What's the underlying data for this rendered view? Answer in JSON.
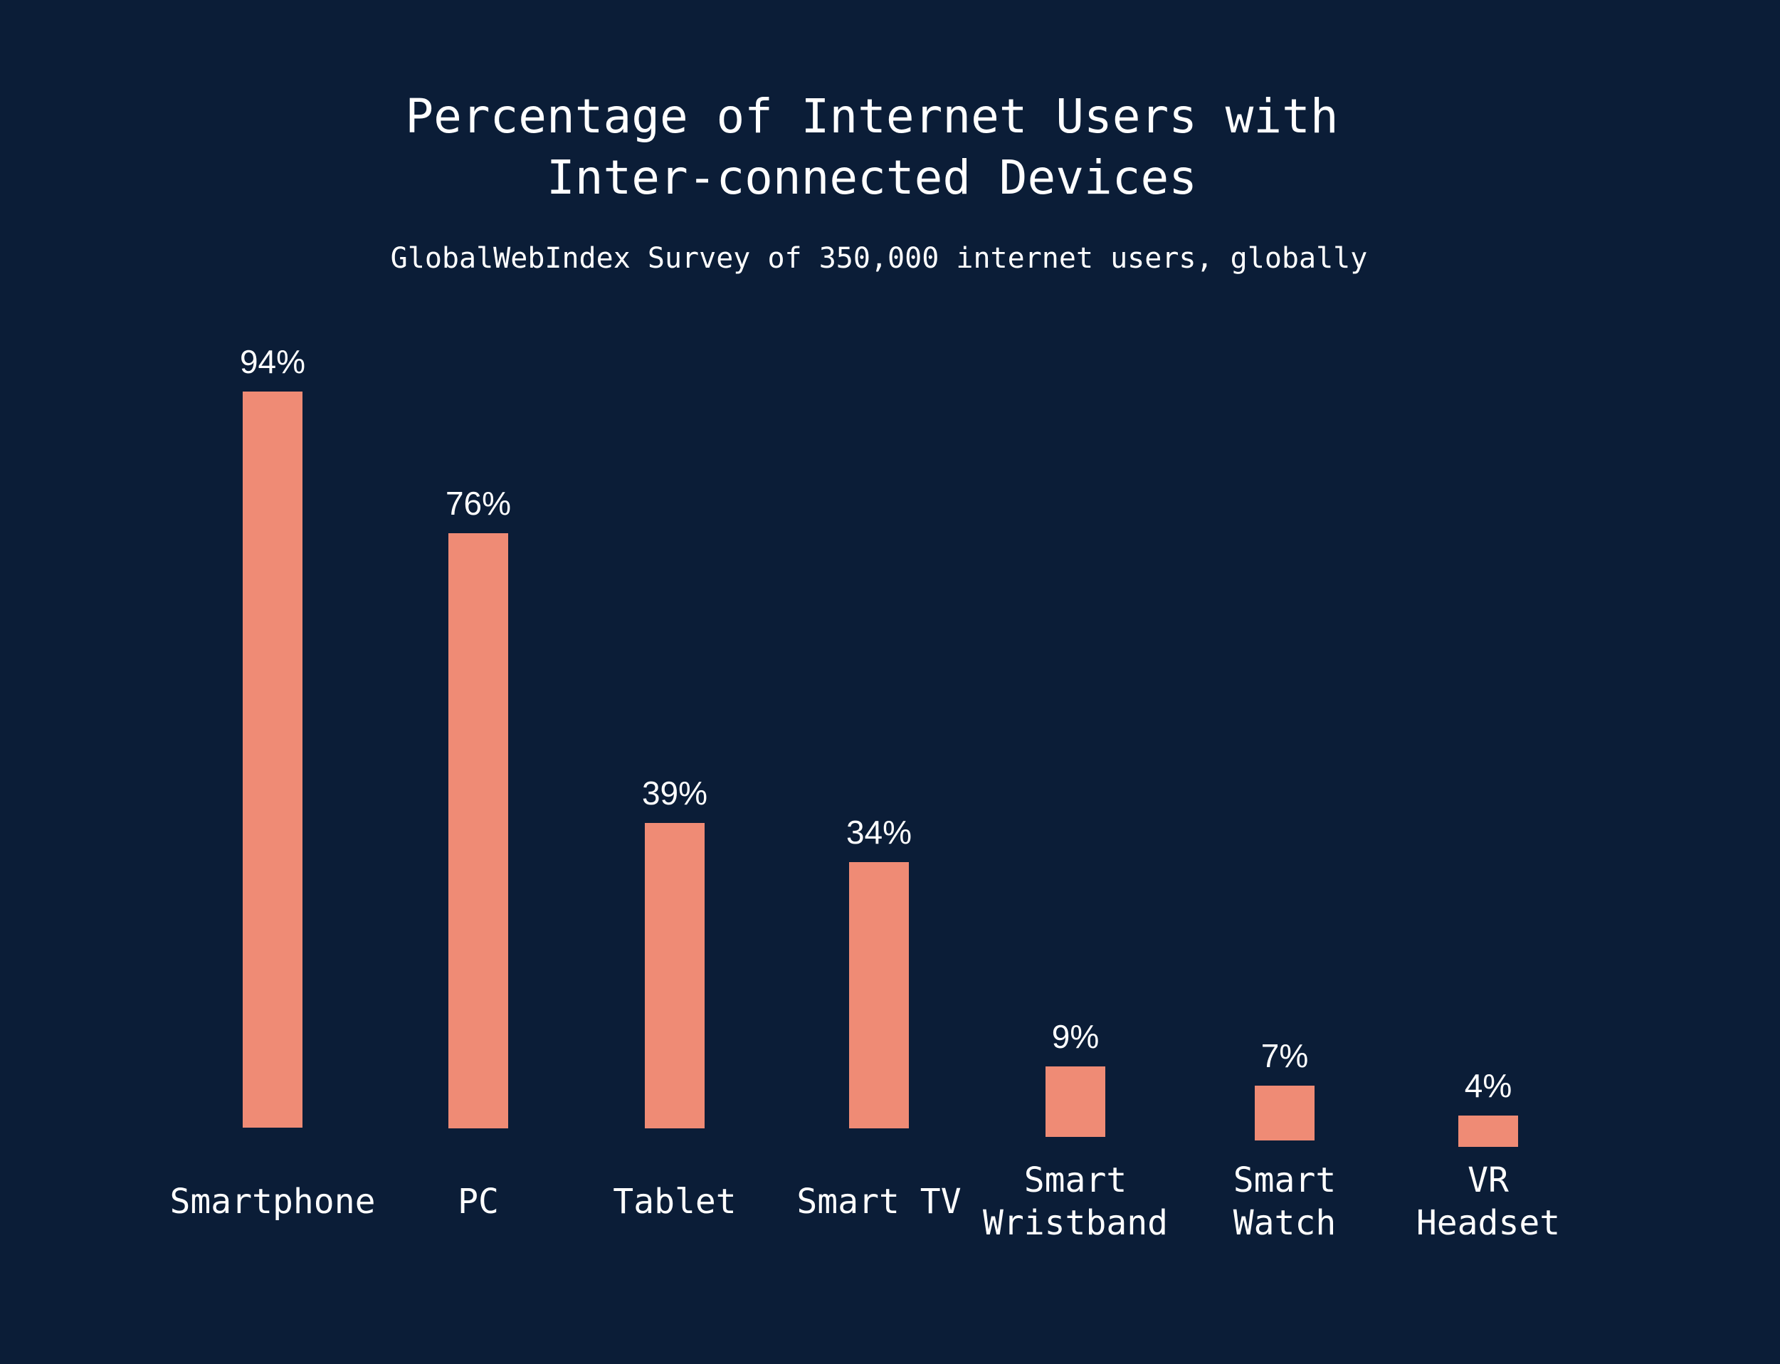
{
  "colors": {
    "background": "#0b1d37",
    "bar": "#ef8b75",
    "text": "#ffffff"
  },
  "chart_data": {
    "type": "bar",
    "title_lines": [
      "Percentage of Internet Users with",
      "Inter-connected Devices"
    ],
    "subtitle": "GlobalWebIndex Survey of 350,000 internet users, globally",
    "categories": [
      "Smartphone",
      "PC",
      "Tablet",
      "Smart TV",
      "Smart Wristband",
      "Smart Watch",
      "VR Headset"
    ],
    "category_label_lines": [
      [
        "Smartphone"
      ],
      [
        "PC"
      ],
      [
        "Tablet"
      ],
      [
        "Smart TV"
      ],
      [
        "Smart",
        "Wristband"
      ],
      [
        "Smart",
        "Watch"
      ],
      [
        "VR",
        "Headset"
      ]
    ],
    "values": [
      94,
      76,
      39,
      34,
      9,
      7,
      4
    ],
    "value_labels": [
      "94%",
      "76%",
      "39%",
      "34%",
      "9%",
      "7%",
      "4%"
    ],
    "unit": "%",
    "ylim": [
      0,
      100
    ],
    "grid": false,
    "legend": "none"
  }
}
